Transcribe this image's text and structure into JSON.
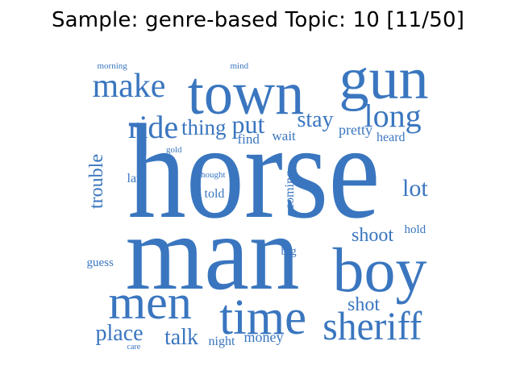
{
  "title": "Sample: genre-based Topic: 10 [11/50]",
  "word_color": "#3a76bf",
  "words": [
    {
      "text": "horse",
      "weight": 1.0
    },
    {
      "text": "man",
      "weight": 0.85
    },
    {
      "text": "town",
      "weight": 0.5
    },
    {
      "text": "gun",
      "weight": 0.48
    },
    {
      "text": "boy",
      "weight": 0.47
    },
    {
      "text": "men",
      "weight": 0.46
    },
    {
      "text": "time",
      "weight": 0.45
    },
    {
      "text": "sheriff",
      "weight": 0.4
    },
    {
      "text": "make",
      "weight": 0.33
    },
    {
      "text": "long",
      "weight": 0.32
    },
    {
      "text": "ride",
      "weight": 0.28
    },
    {
      "text": "put",
      "weight": 0.25
    },
    {
      "text": "lot",
      "weight": 0.22
    },
    {
      "text": "stay",
      "weight": 0.21
    },
    {
      "text": "thing",
      "weight": 0.2
    },
    {
      "text": "place",
      "weight": 0.22
    },
    {
      "text": "talk",
      "weight": 0.22
    },
    {
      "text": "shoot",
      "weight": 0.18
    },
    {
      "text": "shot",
      "weight": 0.18
    },
    {
      "text": "trouble",
      "weight": 0.17
    },
    {
      "text": "pretty",
      "weight": 0.14
    },
    {
      "text": "money",
      "weight": 0.14
    },
    {
      "text": "wait",
      "weight": 0.13
    },
    {
      "text": "find",
      "weight": 0.13
    },
    {
      "text": "heard",
      "weight": 0.13
    },
    {
      "text": "law",
      "weight": 0.12
    },
    {
      "text": "told",
      "weight": 0.12
    },
    {
      "text": "coming",
      "weight": 0.12
    },
    {
      "text": "night",
      "weight": 0.12
    },
    {
      "text": "guess",
      "weight": 0.12
    },
    {
      "text": "hold",
      "weight": 0.12
    },
    {
      "text": "big",
      "weight": 0.12
    },
    {
      "text": "thought",
      "weight": 0.09
    },
    {
      "text": "morning",
      "weight": 0.08
    },
    {
      "text": "mind",
      "weight": 0.08
    },
    {
      "text": "gold",
      "weight": 0.08
    },
    {
      "text": "care",
      "weight": 0.07
    }
  ]
}
